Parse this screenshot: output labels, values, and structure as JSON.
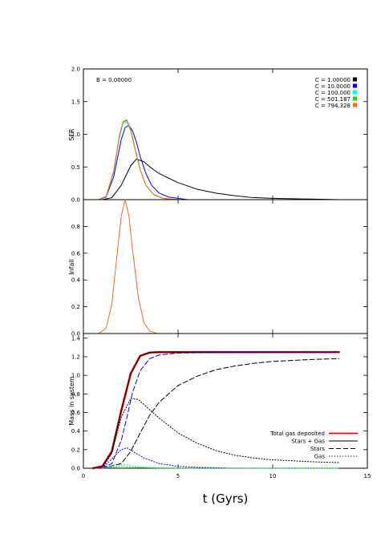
{
  "chart_data": {
    "type": "line",
    "xlabel": "t (Gyrs)",
    "xlim": [
      0,
      15
    ],
    "xticks": [
      0,
      5,
      10,
      15
    ],
    "panels": [
      {
        "id": "sfr",
        "ylabel": "SFR",
        "ylim": [
          0,
          2.0
        ],
        "yticks": [
          "0.0",
          "0.5",
          "1.0",
          "1.5",
          "2.0"
        ],
        "annotation": "B = 0.00000",
        "legend_position": "top-right",
        "series": [
          {
            "name": "C = 1.00000",
            "color": "#000000",
            "x": [
              1.0,
              1.5,
              2.0,
              2.5,
              2.8,
              3.2,
              3.6,
              4.0,
              5.0,
              6.0,
              7.0,
              8.0,
              9.0,
              10.0,
              13.5
            ],
            "y": [
              0.0,
              0.03,
              0.22,
              0.52,
              0.62,
              0.58,
              0.48,
              0.4,
              0.26,
              0.16,
              0.1,
              0.06,
              0.03,
              0.02,
              0.0
            ]
          },
          {
            "name": "C = 10.0000",
            "color": "#0000ff",
            "x": [
              0.8,
              1.2,
              1.6,
              2.0,
              2.2,
              2.4,
              2.6,
              2.8,
              3.0,
              3.3,
              3.6,
              4.0,
              4.5,
              5.5
            ],
            "y": [
              0.0,
              0.04,
              0.35,
              0.92,
              1.1,
              1.14,
              1.05,
              0.88,
              0.66,
              0.4,
              0.22,
              0.1,
              0.04,
              0.0
            ]
          },
          {
            "name": "C = 100.000",
            "color": "#00ffff",
            "x": [
              0.8,
              1.2,
              1.6,
              1.9,
              2.1,
              2.3,
              2.5,
              2.7,
              3.0,
              3.3,
              3.7,
              4.2,
              5.0
            ],
            "y": [
              0.0,
              0.05,
              0.42,
              0.95,
              1.17,
              1.19,
              1.05,
              0.8,
              0.45,
              0.22,
              0.08,
              0.02,
              0.0
            ]
          },
          {
            "name": "C = 501.187",
            "color": "#33cc00",
            "x": [
              0.8,
              1.2,
              1.6,
              1.9,
              2.1,
              2.3,
              2.5,
              2.7,
              3.0,
              3.3,
              3.7,
              4.2,
              5.0
            ],
            "y": [
              0.0,
              0.05,
              0.43,
              0.97,
              1.19,
              1.21,
              1.06,
              0.81,
              0.46,
              0.22,
              0.08,
              0.02,
              0.0
            ]
          },
          {
            "name": "C = 794.328",
            "color": "#ff6622",
            "x": [
              0.8,
              1.2,
              1.6,
              1.9,
              2.1,
              2.3,
              2.5,
              2.7,
              3.0,
              3.3,
              3.7,
              4.2,
              5.0
            ],
            "y": [
              0.0,
              0.05,
              0.44,
              0.98,
              1.2,
              1.22,
              1.07,
              0.82,
              0.46,
              0.22,
              0.08,
              0.02,
              0.0
            ]
          }
        ]
      },
      {
        "id": "infall",
        "ylabel": "Infall",
        "ylim": [
          0,
          1.0
        ],
        "yticks": [
          "0.0",
          "0.2",
          "0.4",
          "0.6",
          "0.8"
        ],
        "series": [
          {
            "name": "",
            "color": "#ff6622",
            "x": [
              0.8,
              1.2,
              1.5,
              1.8,
              2.0,
              2.2,
              2.4,
              2.6,
              2.9,
              3.2,
              3.5,
              3.9,
              4.3
            ],
            "y": [
              0.0,
              0.04,
              0.22,
              0.62,
              0.88,
              1.0,
              0.88,
              0.62,
              0.27,
              0.08,
              0.02,
              0.0,
              0.0
            ]
          }
        ]
      },
      {
        "id": "mass",
        "ylabel": "Mass in system",
        "ylim": [
          0,
          1.45
        ],
        "yticks": [
          "0.0",
          "0.2",
          "0.4",
          "0.6",
          "0.8",
          "1.0",
          "1.2",
          "1.4"
        ],
        "legend_position": "bottom-right",
        "legend": [
          {
            "label": "Total gas deposited",
            "style": "solid-thick",
            "color": "#ff0000"
          },
          {
            "label": "Stars + Gas",
            "style": "solid",
            "color": "#000000"
          },
          {
            "label": "Stars",
            "style": "dashed",
            "color": "#000000"
          },
          {
            "label": "Gas",
            "style": "dotted",
            "color": "#000000"
          }
        ],
        "series": [
          {
            "name": "Total gas deposited",
            "color": "#ff0000",
            "style": "solid-thick",
            "x": [
              0.5,
              1.0,
              1.5,
              2.0,
              2.5,
              3.0,
              3.5,
              4.0,
              5.0,
              13.5
            ],
            "y": [
              0.0,
              0.02,
              0.18,
              0.62,
              1.02,
              1.21,
              1.245,
              1.25,
              1.25,
              1.25
            ]
          },
          {
            "name": "Stars + Gas (C = 1.00000)",
            "color": "#000000",
            "style": "solid",
            "x": [
              0.5,
              1.0,
              1.5,
              2.0,
              2.5,
              3.0,
              3.5,
              4.0,
              5.0,
              13.5
            ],
            "y": [
              0.0,
              0.02,
              0.18,
              0.62,
              1.02,
              1.21,
              1.245,
              1.25,
              1.25,
              1.25
            ]
          },
          {
            "name": "Stars (C = 1.00000)",
            "color": "#000000",
            "style": "dashed",
            "x": [
              1.0,
              2.0,
              2.5,
              3.0,
              3.5,
              4.0,
              5.0,
              6.0,
              7.0,
              8.0,
              9.0,
              10.0,
              12.0,
              13.5
            ],
            "y": [
              0.0,
              0.05,
              0.18,
              0.38,
              0.57,
              0.71,
              0.89,
              0.99,
              1.06,
              1.1,
              1.13,
              1.15,
              1.17,
              1.18
            ]
          },
          {
            "name": "Gas (C = 1.00000)",
            "color": "#000000",
            "style": "dotted",
            "x": [
              1.0,
              1.5,
              2.0,
              2.5,
              2.9,
              3.5,
              4.0,
              5.0,
              6.0,
              7.0,
              8.0,
              9.0,
              10.0,
              12.0,
              13.5
            ],
            "y": [
              0.0,
              0.16,
              0.55,
              0.75,
              0.74,
              0.63,
              0.54,
              0.38,
              0.27,
              0.19,
              0.14,
              0.11,
              0.09,
              0.07,
              0.06
            ]
          },
          {
            "name": "Stars (C = 10.0000)",
            "color": "#0000ff",
            "style": "dashed",
            "x": [
              1.0,
              1.5,
              2.0,
              2.3,
              2.6,
              3.0,
              3.5,
              4.0,
              5.0,
              7.0,
              13.5
            ],
            "y": [
              0.0,
              0.05,
              0.3,
              0.55,
              0.82,
              1.05,
              1.18,
              1.22,
              1.24,
              1.245,
              1.25
            ]
          },
          {
            "name": "Gas (C = 10.0000)",
            "color": "#0000ff",
            "style": "dotted",
            "x": [
              1.0,
              1.5,
              2.0,
              2.3,
              2.7,
              3.2,
              4.0,
              5.0,
              6.0,
              8.0,
              13.5
            ],
            "y": [
              0.0,
              0.1,
              0.2,
              0.22,
              0.17,
              0.11,
              0.05,
              0.02,
              0.01,
              0.0,
              0.0
            ]
          },
          {
            "name": "Gas (C = 100.000)",
            "color": "#00ffff",
            "style": "dotted",
            "x": [
              1.0,
              1.5,
              2.0,
              2.5,
              3.0,
              4.0,
              5.0,
              13.5
            ],
            "y": [
              0.0,
              0.02,
              0.04,
              0.03,
              0.015,
              0.005,
              0.0,
              0.0
            ]
          },
          {
            "name": "Gas (C = 501.187)",
            "color": "#33cc00",
            "style": "dotted",
            "x": [
              1.0,
              1.5,
              2.0,
              2.5,
              3.0,
              4.0,
              5.0,
              13.5
            ],
            "y": [
              0.0,
              0.01,
              0.02,
              0.015,
              0.008,
              0.0,
              0.0,
              0.0
            ]
          }
        ]
      }
    ]
  }
}
